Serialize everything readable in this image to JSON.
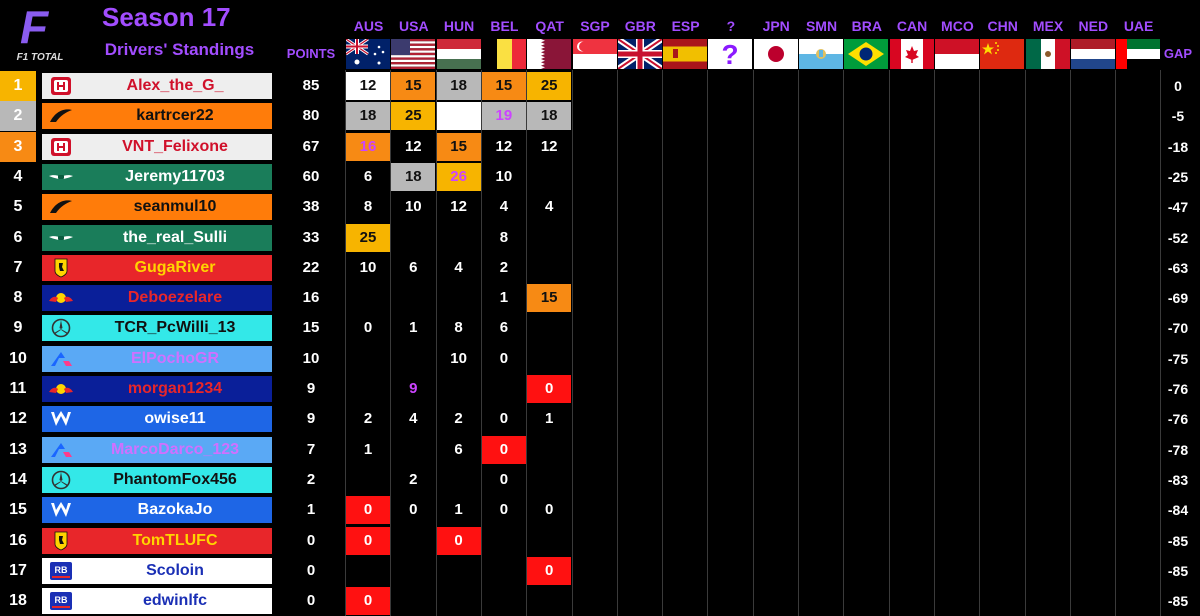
{
  "brand": {
    "logo_letter": "F",
    "logo_text": "F1 TOTAL"
  },
  "header": {
    "season": "Season 17",
    "subtitle": "Drivers' Standings",
    "points_label": "POINTS",
    "gap_label": "GAP"
  },
  "races": [
    {
      "code": "AUS",
      "flag": "australia-flag"
    },
    {
      "code": "USA",
      "flag": "usa-flag"
    },
    {
      "code": "HUN",
      "flag": "hungary-flag"
    },
    {
      "code": "BEL",
      "flag": "belgium-flag"
    },
    {
      "code": "QAT",
      "flag": "qatar-flag"
    },
    {
      "code": "SGP",
      "flag": "singapore-flag"
    },
    {
      "code": "GBR",
      "flag": "uk-flag"
    },
    {
      "code": "ESP",
      "flag": "spain-flag"
    },
    {
      "code": "?",
      "flag": "mystery-flag"
    },
    {
      "code": "JPN",
      "flag": "japan-flag"
    },
    {
      "code": "SMN",
      "flag": "san-marino-flag"
    },
    {
      "code": "BRA",
      "flag": "brazil-flag"
    },
    {
      "code": "CAN",
      "flag": "canada-flag"
    },
    {
      "code": "MCO",
      "flag": "monaco-flag"
    },
    {
      "code": "CHN",
      "flag": "china-flag"
    },
    {
      "code": "MEX",
      "flag": "mexico-flag"
    },
    {
      "code": "NED",
      "flag": "netherlands-flag"
    },
    {
      "code": "UAE",
      "flag": "uae-flag"
    }
  ],
  "colors": {
    "haas": "#eeeeee",
    "mclaren": "#ff7c0a",
    "aston": "#1a7d5a",
    "ferrari": "#e8262a",
    "redbull": "#0a1f99",
    "mercedes": "#33e8e8",
    "alpine": "#5aa9f5",
    "williams": "#1e66e6",
    "rb": "#ffffff",
    "gold": "#f7b400",
    "silver": "#b8b8b8",
    "bronze": "#f78a14",
    "dnf": "#ff1111",
    "fastest_lap_text": "#cc44ff",
    "accent": "#a24dff"
  },
  "drivers": [
    {
      "pos": "1",
      "name": "Alex_the_G_",
      "team": "haas",
      "team_icon": "haas-icon",
      "points": "85",
      "gap": "0",
      "results": [
        {
          "v": "12",
          "c": "white"
        },
        {
          "v": "15",
          "c": "bronze"
        },
        {
          "v": "18",
          "c": "silver"
        },
        {
          "v": "15",
          "c": "bronze"
        },
        {
          "v": "25",
          "c": "gold"
        }
      ]
    },
    {
      "pos": "2",
      "name": "kartrcer22",
      "team": "mclaren",
      "team_icon": "mclaren-icon",
      "points": "80",
      "gap": "-5",
      "results": [
        {
          "v": "18",
          "c": "silver"
        },
        {
          "v": "25",
          "c": "gold"
        },
        {
          "v": "",
          "c": "white"
        },
        {
          "v": "19",
          "c": "silver",
          "fl": true
        },
        {
          "v": "18",
          "c": "silver"
        }
      ]
    },
    {
      "pos": "3",
      "name": "VNT_Felixone",
      "team": "haas",
      "team_icon": "haas-icon",
      "points": "67",
      "gap": "-18",
      "results": [
        {
          "v": "16",
          "c": "bronze",
          "fl": true
        },
        {
          "v": "12",
          "c": "none"
        },
        {
          "v": "15",
          "c": "bronze"
        },
        {
          "v": "12",
          "c": "none"
        },
        {
          "v": "12",
          "c": "none"
        }
      ]
    },
    {
      "pos": "4",
      "name": "Jeremy11703",
      "team": "aston",
      "team_icon": "aston-martin-icon",
      "points": "60",
      "gap": "-25",
      "results": [
        {
          "v": "6",
          "c": "none"
        },
        {
          "v": "18",
          "c": "silver"
        },
        {
          "v": "26",
          "c": "gold",
          "fl": true
        },
        {
          "v": "10",
          "c": "none"
        },
        {
          "v": "",
          "c": "none"
        }
      ]
    },
    {
      "pos": "5",
      "name": "seanmul10",
      "team": "mclaren",
      "team_icon": "mclaren-icon",
      "points": "38",
      "gap": "-47",
      "results": [
        {
          "v": "8",
          "c": "none"
        },
        {
          "v": "10",
          "c": "none"
        },
        {
          "v": "12",
          "c": "none"
        },
        {
          "v": "4",
          "c": "none"
        },
        {
          "v": "4",
          "c": "none"
        }
      ]
    },
    {
      "pos": "6",
      "name": "the_real_Sulli",
      "team": "aston",
      "team_icon": "aston-martin-icon",
      "points": "33",
      "gap": "-52",
      "results": [
        {
          "v": "25",
          "c": "gold"
        },
        {
          "v": "",
          "c": "none"
        },
        {
          "v": "",
          "c": "none"
        },
        {
          "v": "8",
          "c": "none"
        },
        {
          "v": "",
          "c": "none"
        }
      ]
    },
    {
      "pos": "7",
      "name": "GugaRiver",
      "team": "ferrari",
      "team_icon": "ferrari-icon",
      "points": "22",
      "gap": "-63",
      "results": [
        {
          "v": "10",
          "c": "none"
        },
        {
          "v": "6",
          "c": "none"
        },
        {
          "v": "4",
          "c": "none"
        },
        {
          "v": "2",
          "c": "none"
        },
        {
          "v": "",
          "c": "none"
        }
      ]
    },
    {
      "pos": "8",
      "name": "Deboezelare",
      "team": "redbull",
      "team_icon": "red-bull-icon",
      "points": "16",
      "gap": "-69",
      "results": [
        {
          "v": "",
          "c": "none"
        },
        {
          "v": "",
          "c": "none"
        },
        {
          "v": "",
          "c": "none"
        },
        {
          "v": "1",
          "c": "none"
        },
        {
          "v": "15",
          "c": "bronze"
        }
      ]
    },
    {
      "pos": "9",
      "name": "TCR_PcWilli_13",
      "team": "mercedes",
      "team_icon": "mercedes-icon",
      "points": "15",
      "gap": "-70",
      "results": [
        {
          "v": "0",
          "c": "none"
        },
        {
          "v": "1",
          "c": "none"
        },
        {
          "v": "8",
          "c": "none"
        },
        {
          "v": "6",
          "c": "none"
        },
        {
          "v": "",
          "c": "none"
        }
      ]
    },
    {
      "pos": "10",
      "name": "ElPochoGR",
      "team": "alpine",
      "team_icon": "alpine-icon",
      "points": "10",
      "gap": "-75",
      "results": [
        {
          "v": "",
          "c": "none"
        },
        {
          "v": "",
          "c": "none"
        },
        {
          "v": "10",
          "c": "none"
        },
        {
          "v": "0",
          "c": "none"
        },
        {
          "v": "",
          "c": "none"
        }
      ]
    },
    {
      "pos": "11",
      "name": "morgan1234",
      "team": "redbull",
      "team_icon": "red-bull-icon",
      "points": "9",
      "gap": "-76",
      "results": [
        {
          "v": "",
          "c": "none"
        },
        {
          "v": "9",
          "c": "none",
          "fl": true
        },
        {
          "v": "",
          "c": "none"
        },
        {
          "v": "",
          "c": "none"
        },
        {
          "v": "0",
          "c": "dnf"
        }
      ]
    },
    {
      "pos": "12",
      "name": "owise11",
      "team": "williams",
      "team_icon": "williams-icon",
      "points": "9",
      "gap": "-76",
      "results": [
        {
          "v": "2",
          "c": "none"
        },
        {
          "v": "4",
          "c": "none"
        },
        {
          "v": "2",
          "c": "none"
        },
        {
          "v": "0",
          "c": "none"
        },
        {
          "v": "1",
          "c": "none"
        }
      ]
    },
    {
      "pos": "13",
      "name": "MarcoDarco_123",
      "team": "alpine",
      "team_icon": "alpine-icon",
      "points": "7",
      "gap": "-78",
      "results": [
        {
          "v": "1",
          "c": "none"
        },
        {
          "v": "",
          "c": "none"
        },
        {
          "v": "6",
          "c": "none"
        },
        {
          "v": "0",
          "c": "dnf"
        },
        {
          "v": "",
          "c": "none"
        }
      ]
    },
    {
      "pos": "14",
      "name": "PhantomFox456",
      "team": "mercedes",
      "team_icon": "mercedes-icon",
      "points": "2",
      "gap": "-83",
      "results": [
        {
          "v": "",
          "c": "none"
        },
        {
          "v": "2",
          "c": "none"
        },
        {
          "v": "",
          "c": "none"
        },
        {
          "v": "0",
          "c": "none"
        },
        {
          "v": "",
          "c": "none"
        }
      ]
    },
    {
      "pos": "15",
      "name": "BazokaJo",
      "team": "williams",
      "team_icon": "williams-icon",
      "points": "1",
      "gap": "-84",
      "results": [
        {
          "v": "0",
          "c": "dnf"
        },
        {
          "v": "0",
          "c": "none"
        },
        {
          "v": "1",
          "c": "none"
        },
        {
          "v": "0",
          "c": "none"
        },
        {
          "v": "0",
          "c": "none"
        }
      ]
    },
    {
      "pos": "16",
      "name": "TomTLUFC",
      "team": "ferrari",
      "team_icon": "ferrari-icon",
      "points": "0",
      "gap": "-85",
      "results": [
        {
          "v": "0",
          "c": "dnf"
        },
        {
          "v": "",
          "c": "none"
        },
        {
          "v": "0",
          "c": "dnf"
        },
        {
          "v": "",
          "c": "none"
        },
        {
          "v": "",
          "c": "none"
        }
      ]
    },
    {
      "pos": "17",
      "name": "Scoloin",
      "team": "rb",
      "team_icon": "racing-bulls-icon",
      "points": "0",
      "gap": "-85",
      "results": [
        {
          "v": "",
          "c": "none"
        },
        {
          "v": "",
          "c": "none"
        },
        {
          "v": "",
          "c": "none"
        },
        {
          "v": "",
          "c": "none"
        },
        {
          "v": "0",
          "c": "dnf"
        }
      ]
    },
    {
      "pos": "18",
      "name": "edwinlfc",
      "team": "rb",
      "team_icon": "racing-bulls-icon",
      "points": "0",
      "gap": "-85",
      "results": [
        {
          "v": "0",
          "c": "dnf"
        },
        {
          "v": "",
          "c": "none"
        },
        {
          "v": "",
          "c": "none"
        },
        {
          "v": "",
          "c": "none"
        },
        {
          "v": "",
          "c": "none"
        }
      ]
    }
  ]
}
